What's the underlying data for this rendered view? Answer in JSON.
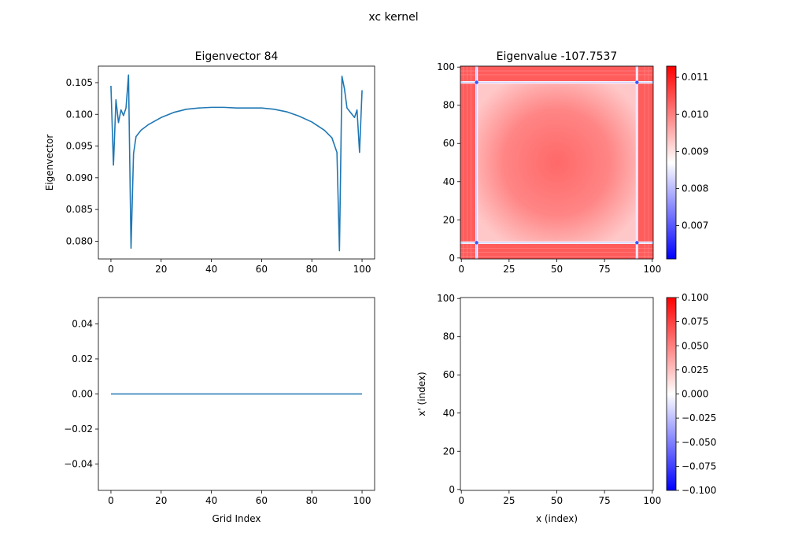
{
  "figure": {
    "suptitle": "xc kernel"
  },
  "colors": {
    "line": "#1f77b4",
    "cmap_low": "#0000ff",
    "cmap_mid": "#ffffff",
    "cmap_high": "#ff0000",
    "heat_base": "#ff6666"
  },
  "chart_data": [
    {
      "id": "eigenvector_top",
      "type": "line",
      "title": "Eigenvector 84",
      "xlabel": "",
      "ylabel": "Eigenvector",
      "xlim": [
        -5,
        105
      ],
      "ylim": [
        0.0772,
        0.1076
      ],
      "xticks": [
        0,
        20,
        40,
        60,
        80,
        100
      ],
      "yticks": [
        0.08,
        0.085,
        0.09,
        0.095,
        0.1,
        0.105
      ],
      "ytick_labels": [
        "0.080",
        "0.085",
        "0.090",
        "0.095",
        "0.100",
        "0.105"
      ],
      "x": [
        0,
        1,
        2,
        3,
        4,
        5,
        6,
        7,
        8,
        9,
        10,
        12,
        15,
        20,
        25,
        30,
        35,
        40,
        45,
        50,
        55,
        60,
        65,
        70,
        75,
        80,
        85,
        88,
        90,
        91,
        92,
        93,
        94,
        95,
        96,
        97,
        98,
        99,
        100
      ],
      "y": [
        0.1045,
        0.092,
        0.1023,
        0.0987,
        0.1007,
        0.0998,
        0.101,
        0.1062,
        0.0789,
        0.0938,
        0.0965,
        0.0975,
        0.0984,
        0.0995,
        0.1003,
        0.1008,
        0.101,
        0.1011,
        0.1011,
        0.101,
        0.101,
        0.101,
        0.1008,
        0.1004,
        0.0997,
        0.0988,
        0.0975,
        0.0963,
        0.094,
        0.0785,
        0.106,
        0.104,
        0.101,
        0.1005,
        0.1,
        0.0995,
        0.1007,
        0.094,
        0.1038
      ]
    },
    {
      "id": "eigenvalue_heatmap",
      "type": "heatmap",
      "title": "Eigenvalue -107.7537",
      "xlim": [
        -0.5,
        100.5
      ],
      "ylim": [
        -0.5,
        100.5
      ],
      "xticks": [
        0,
        25,
        50,
        75,
        100
      ],
      "yticks": [
        0,
        20,
        40,
        60,
        80,
        100
      ],
      "colorbar": {
        "range": [
          0.0061,
          0.0113
        ],
        "ticks": [
          0.007,
          0.008,
          0.009,
          0.01,
          0.011
        ],
        "tick_labels": [
          "0.007",
          "0.008",
          "0.009",
          "0.010",
          "0.011"
        ]
      },
      "structure": {
        "bright_lines": [
          8,
          92
        ],
        "center_value": 0.0104,
        "edge_value": 0.0095,
        "line_value": 0.0088
      }
    },
    {
      "id": "eigenvector_bottom",
      "type": "line",
      "title": "",
      "xlabel": "Grid Index",
      "ylabel": "",
      "xlim": [
        -5,
        105
      ],
      "ylim": [
        -0.055,
        0.055
      ],
      "xticks": [
        0,
        20,
        40,
        60,
        80,
        100
      ],
      "yticks": [
        -0.04,
        -0.02,
        0.0,
        0.02,
        0.04
      ],
      "ytick_labels": [
        "−0.04",
        "−0.02",
        "0.00",
        "0.02",
        "0.04"
      ],
      "x": [
        0,
        100
      ],
      "y": [
        0,
        0
      ]
    },
    {
      "id": "empty_heatmap",
      "type": "heatmap",
      "title": "",
      "xlabel": "x (index)",
      "ylabel": "x' (index)",
      "xlim": [
        -0.5,
        100.5
      ],
      "ylim": [
        -0.5,
        100.5
      ],
      "xticks": [
        0,
        25,
        50,
        75,
        100
      ],
      "yticks": [
        0,
        20,
        40,
        60,
        80,
        100
      ],
      "colorbar": {
        "range": [
          -0.1,
          0.1
        ],
        "ticks": [
          -0.1,
          -0.075,
          -0.05,
          -0.025,
          0.0,
          0.025,
          0.05,
          0.075,
          0.1
        ],
        "tick_labels": [
          "−0.100",
          "−0.075",
          "−0.050",
          "−0.025",
          "0.000",
          "0.025",
          "0.050",
          "0.075",
          "0.100"
        ]
      },
      "fill_value": 0.0
    }
  ]
}
